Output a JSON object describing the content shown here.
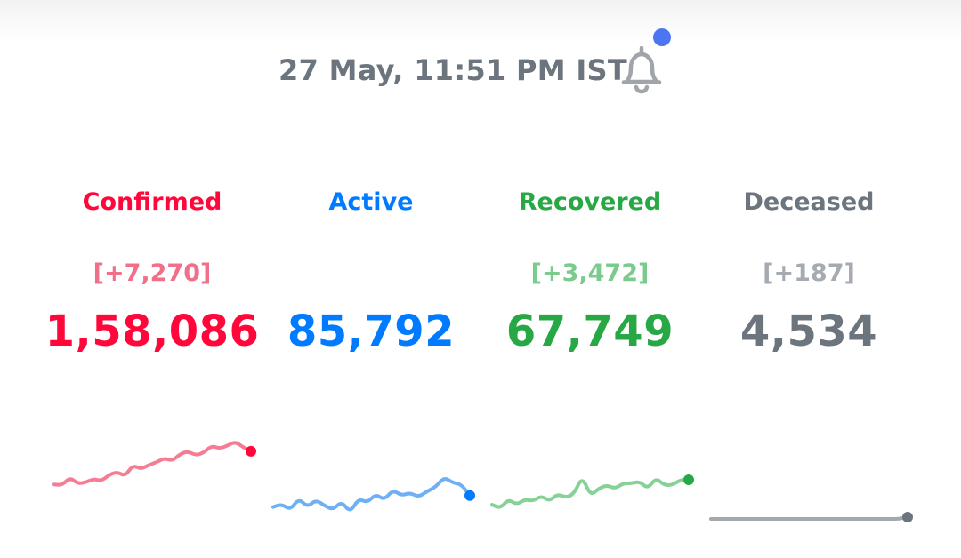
{
  "header": {
    "timestamp": "27 May, 11:51 PM IST",
    "bell_icon": "bell-icon",
    "notification_dot_color": "#4c75f2"
  },
  "stats": [
    {
      "key": "confirmed",
      "label": "Confirmed",
      "delta": "[+7,270]",
      "total": "1,58,086",
      "color": "#ff073a",
      "delta_color": "#f0708a",
      "line_color": "#f47c93"
    },
    {
      "key": "active",
      "label": "Active",
      "delta": "",
      "total": "85,792",
      "color": "#007bff",
      "delta_color": "#66adff",
      "line_color": "#6fb0f5"
    },
    {
      "key": "recovered",
      "label": "Recovered",
      "delta": "[+3,472]",
      "total": "67,749",
      "color": "#28a745",
      "delta_color": "#7ccb8e",
      "line_color": "#86d196"
    },
    {
      "key": "deceased",
      "label": "Deceased",
      "delta": "[+187]",
      "total": "4,534",
      "color": "#6c757d",
      "delta_color": "#a5abb0",
      "line_color": "#a3a8ad"
    }
  ],
  "sparklines": [
    {
      "key": "confirmed",
      "values": [
        3,
        2.5,
        8,
        3.5,
        4.5,
        7,
        5.5,
        10,
        12,
        9,
        17,
        14,
        17,
        19,
        22,
        20,
        25,
        27,
        24,
        26,
        31,
        29,
        31,
        34,
        30,
        27
      ],
      "dot_color": "#ff073a"
    },
    {
      "key": "active",
      "values": [
        8,
        10,
        6,
        14,
        8,
        13,
        9,
        6,
        12,
        4,
        14,
        11,
        17,
        13,
        20,
        16,
        18,
        15,
        19,
        22,
        29,
        25,
        24,
        16
      ],
      "dot_color": "#007bff"
    },
    {
      "key": "recovered",
      "values": [
        3,
        1,
        6,
        3,
        6,
        5,
        8,
        5,
        9,
        7,
        9,
        19,
        8,
        12,
        14,
        12,
        15,
        15,
        16,
        12,
        18,
        14,
        14,
        17,
        17
      ],
      "dot_color": "#28a745"
    },
    {
      "key": "deceased",
      "values": [
        1,
        1,
        1,
        1,
        1,
        1,
        1,
        1,
        1,
        1,
        1,
        1,
        1,
        1,
        1,
        1,
        1,
        1,
        1,
        1,
        1,
        1,
        1,
        1.05
      ],
      "dot_color": "#6c757d"
    }
  ]
}
